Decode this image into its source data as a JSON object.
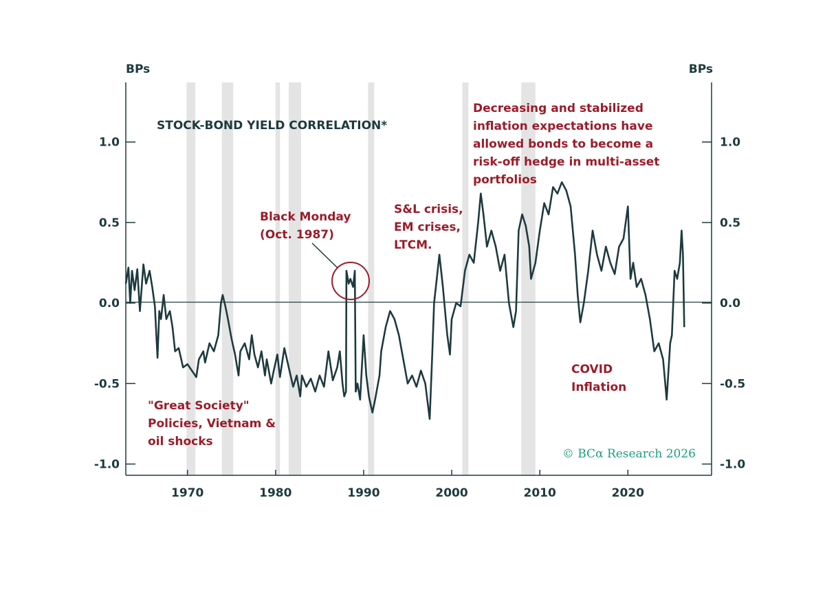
{
  "chart_data": {
    "type": "line",
    "title": "STOCK-BOND YIELD CORRELATION*",
    "y_unit_left": "BPs",
    "y_unit_right": "BPs",
    "xlim": [
      1963,
      2029.5
    ],
    "ylim": [
      -1.07,
      1.37
    ],
    "yticks": [
      1.0,
      0.5,
      0.0,
      -0.5,
      -1.0
    ],
    "ytick_labels": [
      "1.0",
      "0.5",
      "0.0",
      "-0.5",
      "-1.0"
    ],
    "xticks": [
      1970,
      1980,
      1990,
      2000,
      2010,
      2020
    ],
    "xtick_labels": [
      "1970",
      "1980",
      "1990",
      "2000",
      "2010",
      "2020"
    ],
    "grid": false,
    "recession_shading": [
      [
        1969.9,
        1970.9
      ],
      [
        1973.9,
        1975.2
      ],
      [
        1980.0,
        1980.5
      ],
      [
        1981.5,
        1982.9
      ],
      [
        1990.5,
        1991.2
      ],
      [
        2001.2,
        2001.9
      ],
      [
        2007.9,
        2009.5
      ]
    ],
    "series": [
      {
        "points": [
          [
            1963.0,
            0.12
          ],
          [
            1963.3,
            0.22
          ],
          [
            1963.5,
            0.0
          ],
          [
            1963.7,
            0.2
          ],
          [
            1964.0,
            0.08
          ],
          [
            1964.3,
            0.21
          ],
          [
            1964.6,
            -0.05
          ],
          [
            1965.0,
            0.24
          ],
          [
            1965.3,
            0.12
          ],
          [
            1965.7,
            0.2
          ],
          [
            1966.0,
            0.1
          ],
          [
            1966.3,
            -0.02
          ],
          [
            1966.6,
            -0.34
          ],
          [
            1966.8,
            -0.05
          ],
          [
            1967.0,
            -0.1
          ],
          [
            1967.3,
            0.05
          ],
          [
            1967.6,
            -0.1
          ],
          [
            1968.0,
            -0.05
          ],
          [
            1968.3,
            -0.15
          ],
          [
            1968.6,
            -0.3
          ],
          [
            1969.0,
            -0.28
          ],
          [
            1969.5,
            -0.4
          ],
          [
            1970.0,
            -0.38
          ],
          [
            1970.5,
            -0.42
          ],
          [
            1971.0,
            -0.46
          ],
          [
            1971.3,
            -0.35
          ],
          [
            1971.8,
            -0.3
          ],
          [
            1972.0,
            -0.37
          ],
          [
            1972.5,
            -0.25
          ],
          [
            1973.0,
            -0.3
          ],
          [
            1973.5,
            -0.2
          ],
          [
            1973.8,
            0.0
          ],
          [
            1974.0,
            0.05
          ],
          [
            1974.3,
            -0.02
          ],
          [
            1974.6,
            -0.1
          ],
          [
            1975.0,
            -0.22
          ],
          [
            1975.4,
            -0.32
          ],
          [
            1975.8,
            -0.45
          ],
          [
            1976.0,
            -0.3
          ],
          [
            1976.5,
            -0.25
          ],
          [
            1977.0,
            -0.35
          ],
          [
            1977.3,
            -0.2
          ],
          [
            1977.6,
            -0.32
          ],
          [
            1978.0,
            -0.4
          ],
          [
            1978.4,
            -0.3
          ],
          [
            1978.8,
            -0.45
          ],
          [
            1979.0,
            -0.35
          ],
          [
            1979.5,
            -0.5
          ],
          [
            1979.8,
            -0.42
          ],
          [
            1980.2,
            -0.32
          ],
          [
            1980.5,
            -0.46
          ],
          [
            1981.0,
            -0.28
          ],
          [
            1981.5,
            -0.4
          ],
          [
            1982.0,
            -0.52
          ],
          [
            1982.4,
            -0.45
          ],
          [
            1982.8,
            -0.58
          ],
          [
            1983.0,
            -0.45
          ],
          [
            1983.5,
            -0.52
          ],
          [
            1984.0,
            -0.47
          ],
          [
            1984.5,
            -0.55
          ],
          [
            1985.0,
            -0.45
          ],
          [
            1985.5,
            -0.52
          ],
          [
            1986.0,
            -0.3
          ],
          [
            1986.5,
            -0.48
          ],
          [
            1987.0,
            -0.4
          ],
          [
            1987.3,
            -0.3
          ],
          [
            1987.6,
            -0.5
          ],
          [
            1987.8,
            -0.58
          ],
          [
            1988.0,
            -0.55
          ],
          [
            1988.05,
            0.2
          ],
          [
            1988.3,
            0.12
          ],
          [
            1988.5,
            0.15
          ],
          [
            1988.8,
            0.1
          ],
          [
            1989.0,
            0.2
          ],
          [
            1989.1,
            -0.55
          ],
          [
            1989.3,
            -0.5
          ],
          [
            1989.6,
            -0.6
          ],
          [
            1990.0,
            -0.2
          ],
          [
            1990.3,
            -0.45
          ],
          [
            1990.6,
            -0.58
          ],
          [
            1991.0,
            -0.68
          ],
          [
            1991.3,
            -0.6
          ],
          [
            1991.8,
            -0.45
          ],
          [
            1992.0,
            -0.3
          ],
          [
            1992.5,
            -0.15
          ],
          [
            1993.0,
            -0.05
          ],
          [
            1993.5,
            -0.1
          ],
          [
            1994.0,
            -0.2
          ],
          [
            1994.5,
            -0.35
          ],
          [
            1995.0,
            -0.5
          ],
          [
            1995.5,
            -0.45
          ],
          [
            1996.0,
            -0.52
          ],
          [
            1996.5,
            -0.42
          ],
          [
            1997.0,
            -0.5
          ],
          [
            1997.5,
            -0.72
          ],
          [
            1997.8,
            -0.3
          ],
          [
            1998.0,
            0.0
          ],
          [
            1998.3,
            0.15
          ],
          [
            1998.6,
            0.3
          ],
          [
            1999.0,
            0.1
          ],
          [
            1999.5,
            -0.2
          ],
          [
            1999.8,
            -0.32
          ],
          [
            2000.0,
            -0.1
          ],
          [
            2000.5,
            0.0
          ],
          [
            2001.0,
            -0.02
          ],
          [
            2001.5,
            0.2
          ],
          [
            2002.0,
            0.3
          ],
          [
            2002.5,
            0.25
          ],
          [
            2003.0,
            0.5
          ],
          [
            2003.3,
            0.68
          ],
          [
            2003.6,
            0.55
          ],
          [
            2004.0,
            0.35
          ],
          [
            2004.5,
            0.45
          ],
          [
            2005.0,
            0.35
          ],
          [
            2005.5,
            0.2
          ],
          [
            2006.0,
            0.3
          ],
          [
            2006.5,
            0.0
          ],
          [
            2007.0,
            -0.15
          ],
          [
            2007.3,
            -0.05
          ],
          [
            2007.6,
            0.45
          ],
          [
            2008.0,
            0.55
          ],
          [
            2008.4,
            0.48
          ],
          [
            2008.8,
            0.35
          ],
          [
            2009.0,
            0.15
          ],
          [
            2009.5,
            0.25
          ],
          [
            2010.0,
            0.45
          ],
          [
            2010.5,
            0.62
          ],
          [
            2011.0,
            0.55
          ],
          [
            2011.5,
            0.72
          ],
          [
            2012.0,
            0.68
          ],
          [
            2012.5,
            0.75
          ],
          [
            2013.0,
            0.7
          ],
          [
            2013.5,
            0.6
          ],
          [
            2014.0,
            0.3
          ],
          [
            2014.3,
            0.05
          ],
          [
            2014.6,
            -0.12
          ],
          [
            2015.0,
            0.0
          ],
          [
            2015.5,
            0.2
          ],
          [
            2016.0,
            0.45
          ],
          [
            2016.5,
            0.3
          ],
          [
            2017.0,
            0.2
          ],
          [
            2017.5,
            0.35
          ],
          [
            2018.0,
            0.25
          ],
          [
            2018.5,
            0.18
          ],
          [
            2019.0,
            0.35
          ],
          [
            2019.5,
            0.4
          ],
          [
            2020.0,
            0.6
          ],
          [
            2020.3,
            0.15
          ],
          [
            2020.6,
            0.25
          ],
          [
            2021.0,
            0.1
          ],
          [
            2021.5,
            0.15
          ],
          [
            2022.0,
            0.05
          ],
          [
            2022.5,
            -0.1
          ],
          [
            2023.0,
            -0.3
          ],
          [
            2023.5,
            -0.25
          ],
          [
            2024.0,
            -0.35
          ],
          [
            2024.4,
            -0.6
          ],
          [
            2024.8,
            -0.25
          ],
          [
            2025.0,
            -0.2
          ],
          [
            2025.3,
            0.2
          ],
          [
            2025.6,
            0.15
          ],
          [
            2025.9,
            0.25
          ],
          [
            2026.1,
            0.45
          ],
          [
            2026.25,
            0.3
          ],
          [
            2026.4,
            -0.15
          ]
        ]
      }
    ],
    "annotations": {
      "decreasing": [
        "Decreasing and stabilized",
        "inflation expectations have",
        "allowed bonds to become a",
        "risk-off hedge in multi-asset",
        "portfolios"
      ],
      "black_monday": [
        "Black Monday",
        "(Oct. 1987)"
      ],
      "sl_crisis": [
        "S&L crisis,",
        "EM crises,",
        "LTCM."
      ],
      "covid": [
        "COVID",
        "Inflation"
      ],
      "great_society": [
        "\"Great Society\"",
        "Policies, Vietnam &",
        "oil shocks"
      ]
    },
    "copyright": "© BCα Research 2026",
    "colors": {
      "line": "#1d3a3e",
      "annotation": "#9b1c2a",
      "shading": "#e4e4e4",
      "copyright": "#1aa07a"
    }
  }
}
